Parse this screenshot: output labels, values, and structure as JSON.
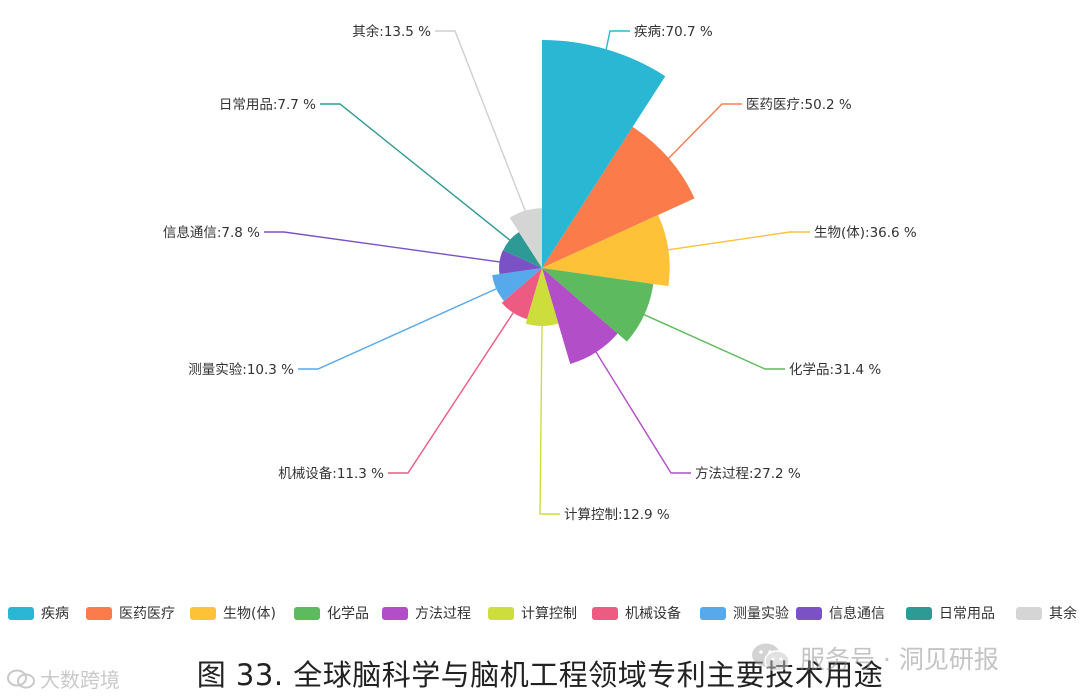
{
  "chart_data": {
    "type": "pie",
    "subtype": "nightingale-rose",
    "title": "",
    "value_suffix": " %",
    "categories": [
      "疾病",
      "医药医疗",
      "生物(体)",
      "化学品",
      "方法过程",
      "计算控制",
      "机械设备",
      "测量实验",
      "信息通信",
      "日常用品",
      "其余"
    ],
    "values": [
      70.7,
      50.2,
      36.6,
      31.4,
      27.2,
      12.9,
      11.3,
      10.3,
      7.8,
      7.7,
      13.5
    ],
    "colors": [
      "#2ab7d4",
      "#fb7b4b",
      "#fdc237",
      "#5dba5e",
      "#b34ec9",
      "#cddd3b",
      "#ed5b82",
      "#56a9ea",
      "#7a52c6",
      "#2d9a95",
      "#d5d5d5"
    ],
    "labels": [
      "疾病:70.7 %",
      "医药医疗:50.2 %",
      "生物(体):36.6 %",
      "化学品:31.4 %",
      "方法过程:27.2 %",
      "计算控制:12.9 %",
      "机械设备:11.3 %",
      "测量实验:10.3 %",
      "信息通信:7.8 %",
      "日常用品:7.7 %",
      "其余:13.5 %"
    ],
    "legend": [
      "疾病",
      "医药医疗",
      "生物(体)",
      "化学品",
      "方法过程",
      "计算控制",
      "机械设备",
      "测量实验",
      "信息通信",
      "日常用品",
      "其余"
    ],
    "legend_position": "bottom"
  },
  "caption": "图 33. 全球脑科学与脑机工程领域专利主要技术用途",
  "watermarks": {
    "left_text": "大数跨境",
    "left_icon": "chat-bubbles-icon",
    "right_text": "服务号 · 洞见研报",
    "right_icon": "wechat-icon"
  }
}
